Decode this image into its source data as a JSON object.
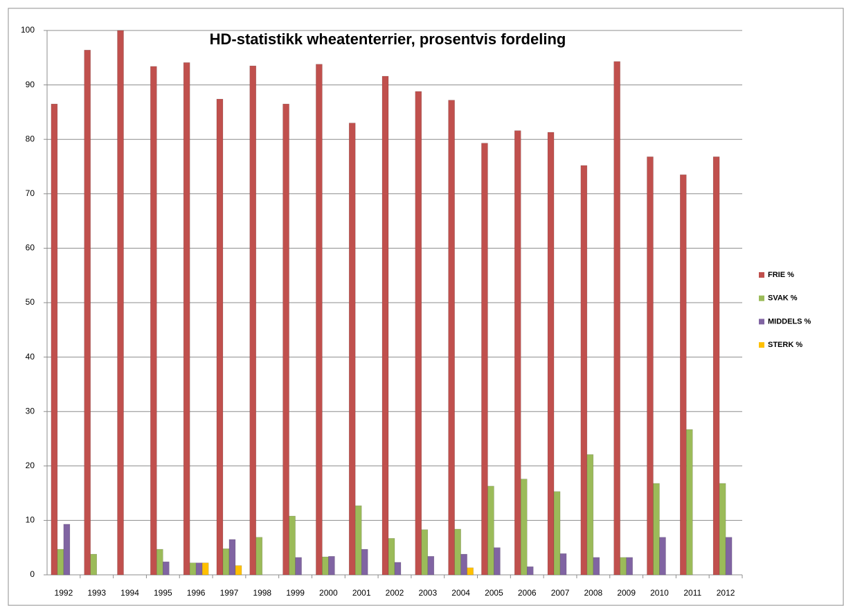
{
  "chart_data": {
    "type": "bar",
    "title": "HD-statistikk wheatenterrier, prosentvis fordeling",
    "categories": [
      "1992",
      "1993",
      "1994",
      "1995",
      "1996",
      "1997",
      "1998",
      "1999",
      "2000",
      "2001",
      "2002",
      "2003",
      "2004",
      "2005",
      "2006",
      "2007",
      "2008",
      "2009",
      "2010",
      "2011",
      "2012"
    ],
    "series": [
      {
        "name": "FRIE %",
        "color": "#c0504d",
        "values": [
          86.5,
          96.4,
          100,
          93.4,
          94.1,
          87.4,
          93.5,
          86.5,
          93.8,
          83,
          91.6,
          88.8,
          87.2,
          79.3,
          81.6,
          81.3,
          75.2,
          94.3,
          76.8,
          73.5,
          76.8
        ]
      },
      {
        "name": "SVAK %",
        "color": "#9bbb59",
        "values": [
          4.7,
          3.8,
          0,
          4.7,
          2.2,
          4.8,
          6.9,
          10.8,
          3.3,
          12.7,
          6.7,
          8.3,
          8.4,
          16.3,
          17.6,
          15.3,
          22.1,
          3.2,
          16.8,
          26.7,
          16.8
        ]
      },
      {
        "name": "MIDDELS %",
        "color": "#8064a2",
        "values": [
          9.3,
          0,
          0,
          2.4,
          2.2,
          6.5,
          0,
          3.2,
          3.4,
          4.7,
          2.3,
          3.4,
          3.8,
          5,
          1.5,
          3.9,
          3.2,
          3.2,
          6.9,
          0,
          6.9
        ]
      },
      {
        "name": "STERK %",
        "color": "#ffc000",
        "values": [
          0,
          0,
          0,
          0,
          2.2,
          1.7,
          0,
          0,
          0,
          0,
          0,
          0,
          1.3,
          0,
          0,
          0,
          0,
          0,
          0,
          0,
          0
        ]
      }
    ],
    "ylim": [
      0,
      100
    ],
    "yticks": [
      0,
      10,
      20,
      30,
      40,
      50,
      60,
      70,
      80,
      90,
      100
    ],
    "grid": true,
    "legend": "right"
  }
}
